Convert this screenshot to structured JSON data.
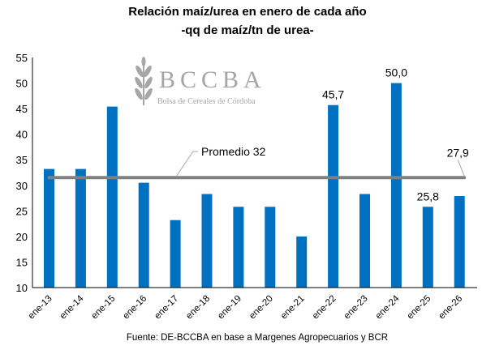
{
  "chart_data": {
    "type": "bar",
    "title": "Relación maíz/urea en enero de cada año",
    "subtitle": "-qq de maíz/tn de urea-",
    "categories": [
      "ene-13",
      "ene-14",
      "ene-15",
      "ene-16",
      "ene-17",
      "ene-18",
      "ene-19",
      "ene-20",
      "ene-21",
      "ene-22",
      "ene-23",
      "ene-24",
      "ene-25",
      "ene-26"
    ],
    "values": [
      33.2,
      33.2,
      45.4,
      30.5,
      23.2,
      28.3,
      25.8,
      25.8,
      20.0,
      45.7,
      28.3,
      50.0,
      25.8,
      27.9
    ],
    "data_labels": {
      "9": "45,7",
      "11": "50,0",
      "12": "25,8",
      "13": "27,9"
    },
    "reference_line": {
      "value": 31.5,
      "label": "Promedio 32",
      "color": "#808080"
    },
    "ylim": [
      10,
      55
    ],
    "yticks": [
      10,
      15,
      20,
      25,
      30,
      35,
      40,
      45,
      50,
      55
    ],
    "bar_color": "#0070C0",
    "grid": false,
    "source": "Fuente: DE-BCCBA en base a Margenes Agropecuarios y BCR"
  },
  "logo": {
    "name": "BCCBA",
    "subtitle": "Bolsa de Cereales de Córdoba"
  }
}
